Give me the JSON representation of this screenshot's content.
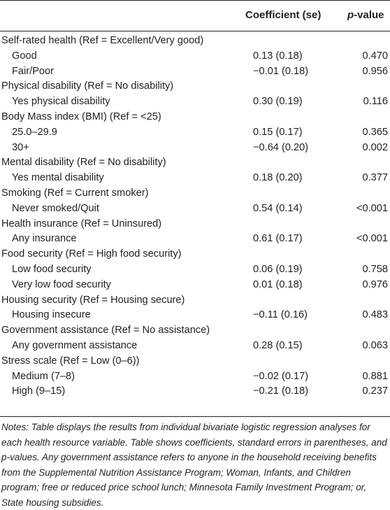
{
  "header": {
    "coefficient": "Coefficient (se)",
    "pvalue_italic": "p",
    "pvalue_rest": "-value"
  },
  "rows": [
    {
      "label": "Self-rated health (Ref = Excellent/Very good)",
      "sub": false,
      "coef": "",
      "p": ""
    },
    {
      "label": "Good",
      "sub": true,
      "coef": "0.13 (0.18)",
      "p": "0.470"
    },
    {
      "label": "Fair/Poor",
      "sub": true,
      "coef": "−0.01 (0.18)",
      "p": "0.956"
    },
    {
      "label": "Physical disability (Ref = No disability)",
      "sub": false,
      "coef": "",
      "p": ""
    },
    {
      "label": "Yes physical disability",
      "sub": true,
      "coef": "0.30 (0.19)",
      "p": "0.116"
    },
    {
      "label": "Body Mass index (BMI) (Ref = <25)",
      "sub": false,
      "coef": "",
      "p": ""
    },
    {
      "label": "25.0–29.9",
      "sub": true,
      "coef": "0.15 (0.17)",
      "p": "0.365"
    },
    {
      "label": "30+",
      "sub": true,
      "coef": "−0.64 (0.20)",
      "p": "0.002"
    },
    {
      "label": "Mental disability (Ref = No disability)",
      "sub": false,
      "coef": "",
      "p": ""
    },
    {
      "label": "Yes mental disability",
      "sub": true,
      "coef": "0.18 (0.20)",
      "p": "0.377"
    },
    {
      "label": "Smoking (Ref = Current smoker)",
      "sub": false,
      "coef": "",
      "p": ""
    },
    {
      "label": "Never smoked/Quit",
      "sub": true,
      "coef": "0.54 (0.14)",
      "p": "<0.001"
    },
    {
      "label": "Health insurance (Ref = Uninsured)",
      "sub": false,
      "coef": "",
      "p": ""
    },
    {
      "label": "Any insurance",
      "sub": true,
      "coef": "0.61 (0.17)",
      "p": "<0.001"
    },
    {
      "label": "Food security (Ref = High food security)",
      "sub": false,
      "coef": "",
      "p": ""
    },
    {
      "label": "Low food security",
      "sub": true,
      "coef": "0.06 (0.19)",
      "p": "0.758"
    },
    {
      "label": "Very low food security",
      "sub": true,
      "coef": "0.01 (0.18)",
      "p": "0.976"
    },
    {
      "label": "Housing security (Ref = Housing secure)",
      "sub": false,
      "coef": "",
      "p": ""
    },
    {
      "label": "Housing insecure",
      "sub": true,
      "coef": "−0.11 (0.16)",
      "p": "0.483"
    },
    {
      "label": "Government assistance (Ref = No assistance)",
      "sub": false,
      "coef": "",
      "p": ""
    },
    {
      "label": "Any government assistance",
      "sub": true,
      "coef": "0.28 (0.15)",
      "p": "0.063"
    },
    {
      "label": "Stress scale (Ref = Low (0–6))",
      "sub": false,
      "coef": "",
      "p": ""
    },
    {
      "label": "Medium (7–8)",
      "sub": true,
      "coef": "−0.02 (0.17)",
      "p": "0.881"
    },
    {
      "label": "High (9–15)",
      "sub": true,
      "coef": "−0.21 (0.18)",
      "p": "0.237"
    }
  ],
  "notes": "Notes: Table displays the results from individual bivariate logistic regression analyses for each health resource variable. Table shows coefficients, standard errors in parentheses, and p-values. Any government assistance refers to anyone in the household receiving benefits from the Supplemental Nutrition Assistance Program; Woman, Infants, and Children program; free or reduced price school lunch; Minnesota Family Investment Program; or, State housing subsidies."
}
